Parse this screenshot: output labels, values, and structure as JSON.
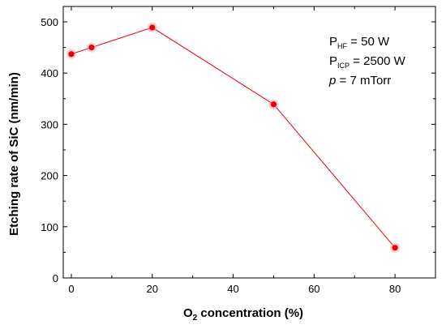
{
  "chart_data": {
    "type": "line",
    "x": [
      0,
      5,
      20,
      50,
      80
    ],
    "series": [
      {
        "values": [
          437,
          450,
          489,
          339,
          59
        ],
        "color": "#e8000b"
      }
    ],
    "xlabel_main": "O",
    "xlabel_sub": "2",
    "xlabel_rest": " concentration (%)",
    "ylabel": "Etching rate of SiC (nm/min)",
    "xlim": [
      -2,
      90
    ],
    "ylim": [
      0,
      530
    ],
    "xticks": [
      0,
      20,
      40,
      60,
      80
    ],
    "xtick_labels": [
      "0",
      "20",
      "40",
      "60",
      "80"
    ],
    "yticks": [
      0,
      100,
      200,
      300,
      400,
      500
    ],
    "ytick_labels": [
      "0",
      "100",
      "200",
      "300",
      "400",
      "500"
    ],
    "grid": false,
    "annotations": {
      "line1_main": "P",
      "line1_sub": "HF",
      "line1_rest": " = 50 W",
      "line2_main": "P",
      "line2_sub": "ICP",
      "line2_rest": " = 2500 W",
      "line3_symbol": "p",
      "line3_rest": " = 7 mTorr"
    }
  }
}
